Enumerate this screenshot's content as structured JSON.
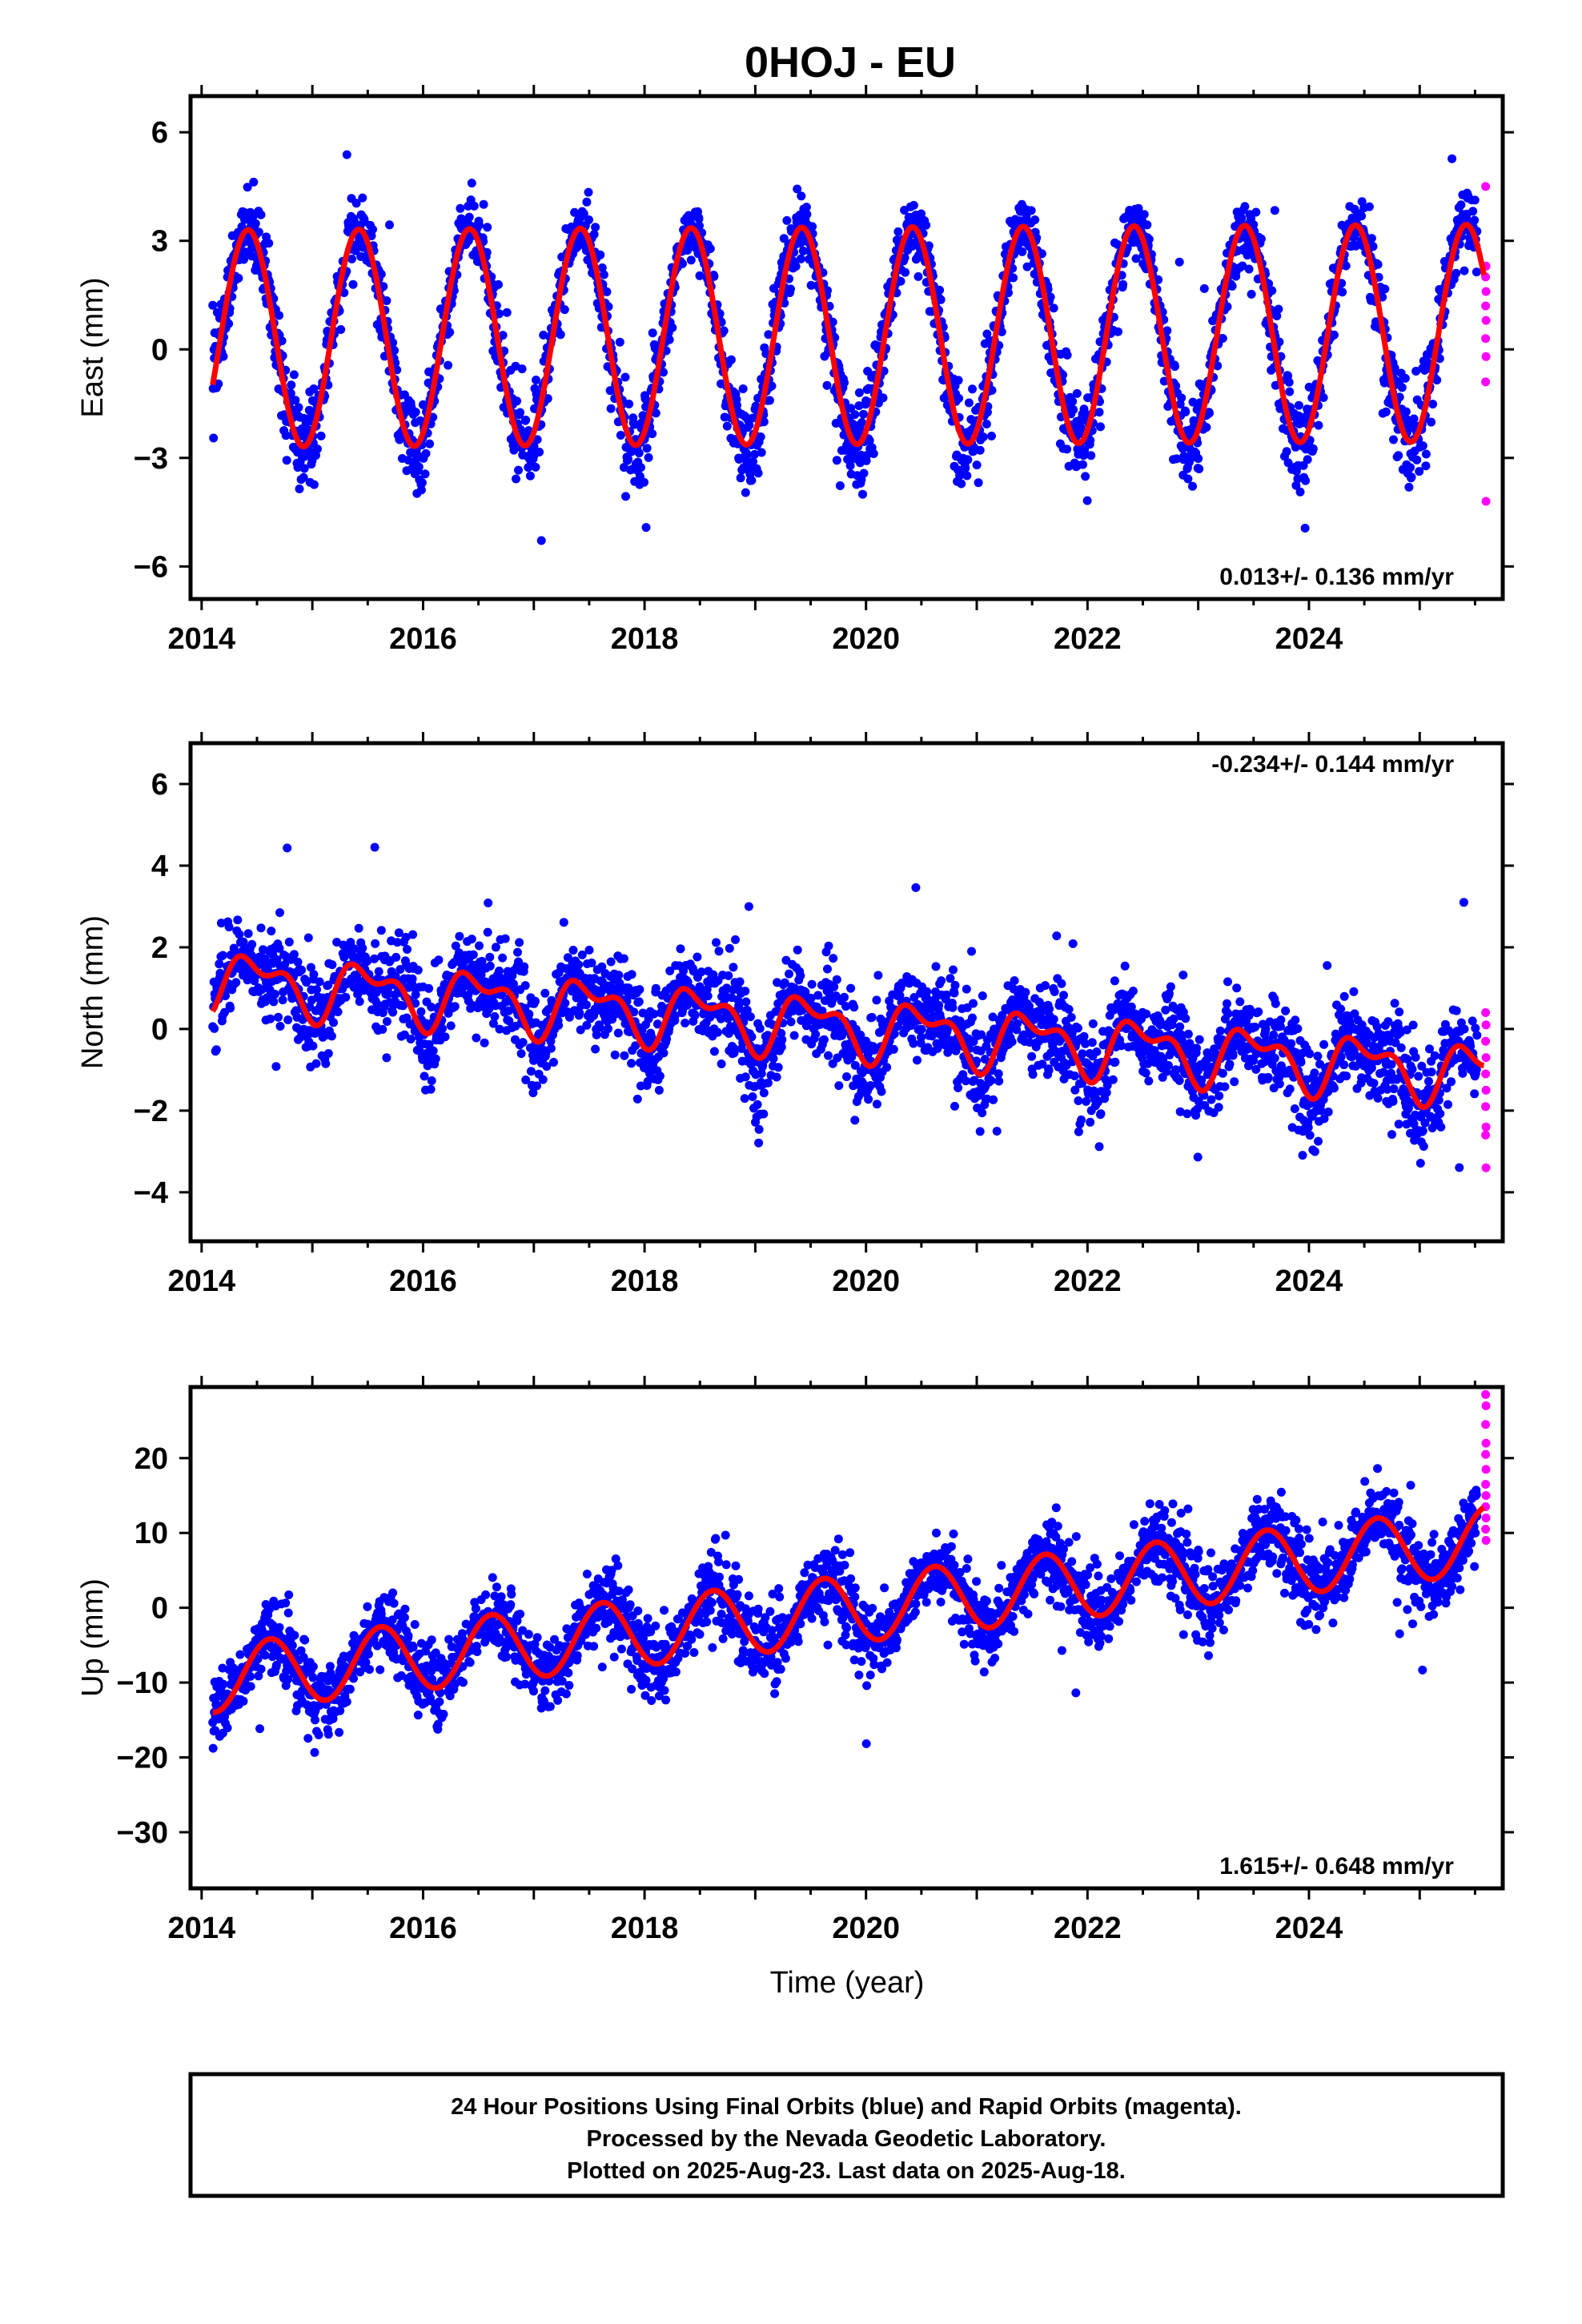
{
  "title": "0HOJ - EU",
  "xlabel": "Time (year)",
  "footer": {
    "line1": "24 Hour Positions Using Final Orbits (blue) and Rapid Orbits (magenta).",
    "line2": "Processed by the Nevada Geodetic Laboratory.",
    "line3": "Plotted on 2025-Aug-23. Last data on 2025-Aug-18."
  },
  "colors": {
    "final": "#0000ff",
    "rapid": "#ff00ff",
    "model": "#ff0000",
    "frame": "#000000"
  },
  "chart_data": [
    {
      "type": "scatter",
      "component": "east",
      "ylabel": "East (mm)",
      "rate_label": "0.013+/- 0.136 mm/yr",
      "rate_position": "bottom-right",
      "xlim": [
        2013.9,
        2025.75
      ],
      "ylim": [
        -6.9,
        7.0
      ],
      "xticks": [
        2014,
        2016,
        2018,
        2020,
        2022,
        2024
      ],
      "yticks": [
        -6,
        -3,
        0,
        3,
        6
      ],
      "ytick_labels": [
        "−6",
        "−3",
        "0",
        "3",
        "6"
      ],
      "model": {
        "t0": 2014.1,
        "t1": 2025.58,
        "offset": 0.3,
        "trend": 0.013,
        "annual_amp": 3.0,
        "annual_peak": 0.42,
        "semi_amp": 0.0,
        "semi_phase": 0
      },
      "scatter_sd": 1.0,
      "rapid_values": [
        4.5,
        2.3,
        2.0,
        1.6,
        1.2,
        0.8,
        0.3,
        -0.2,
        -0.9,
        -4.2
      ]
    },
    {
      "type": "scatter",
      "component": "north",
      "ylabel": "North (mm)",
      "rate_label": "-0.234+/- 0.144 mm/yr",
      "rate_position": "top-right",
      "xlim": [
        2013.9,
        2025.75
      ],
      "ylim": [
        -5.2,
        7.0
      ],
      "xticks": [
        2014,
        2016,
        2018,
        2020,
        2022,
        2024
      ],
      "yticks": [
        -4,
        -2,
        0,
        2,
        4,
        6
      ],
      "ytick_labels": [
        "−4",
        "−2",
        "0",
        "2",
        "4",
        "6"
      ],
      "model": {
        "t0": 2014.1,
        "t1": 2025.58,
        "offset": 1.2,
        "trend": -0.2,
        "annual_amp": 0.6,
        "annual_peak": 0.5,
        "semi_amp": 0.35,
        "semi_phase": 0.3
      },
      "scatter_sd": 1.0,
      "rapid_values": [
        0.4,
        0.1,
        -0.3,
        -0.7,
        -1.1,
        -1.5,
        -1.9,
        -2.4,
        -2.6,
        -3.4
      ]
    },
    {
      "type": "scatter",
      "component": "up",
      "ylabel": "Up (mm)",
      "rate_label": "1.615+/- 0.648 mm/yr",
      "rate_position": "bottom-right",
      "xlim": [
        2013.9,
        2025.75
      ],
      "ylim": [
        -37.5,
        29.5
      ],
      "xticks": [
        2014,
        2016,
        2018,
        2020,
        2022,
        2024
      ],
      "yticks": [
        -30,
        -20,
        -10,
        0,
        10,
        20
      ],
      "ytick_labels": [
        "−30",
        "−20",
        "−10",
        "0",
        "10",
        "20"
      ],
      "model": {
        "t0": 2014.1,
        "t1": 2025.58,
        "offset": -9.5,
        "trend": 1.615,
        "annual_amp": 4.5,
        "annual_peak": 0.62,
        "semi_amp": 0.0,
        "semi_phase": 0
      },
      "scatter_sd": 4.5,
      "rapid_values": [
        28.5,
        27.0,
        24.5,
        22.0,
        20.5,
        18.5,
        16.5,
        15.0,
        13.5,
        12.0,
        10.5,
        9.0
      ]
    }
  ]
}
